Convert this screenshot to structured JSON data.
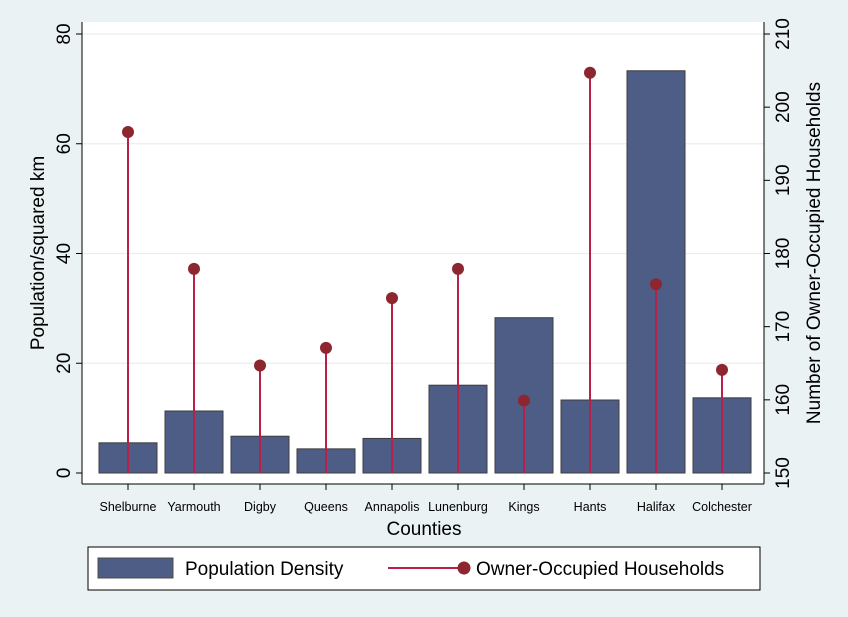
{
  "chart_data": {
    "type": "bar",
    "categories": [
      "Shelburne",
      "Yarmouth",
      "Digby",
      "Queens",
      "Annapolis",
      "Lunenburg",
      "Kings",
      "Hants",
      "Halifax",
      "Colchester"
    ],
    "series": [
      {
        "name": "Population Density",
        "type": "bar",
        "axis": "left",
        "values": [
          5.5,
          11.3,
          6.7,
          4.4,
          6.3,
          16.0,
          28.3,
          13.3,
          73.3,
          13.7
        ],
        "color": "#4e5d86"
      },
      {
        "name": "Owner-Occupied Households",
        "type": "lollipop",
        "axis": "right",
        "values": [
          196.6,
          177.9,
          164.7,
          167.1,
          173.9,
          177.9,
          159.9,
          204.7,
          175.8,
          164.1
        ],
        "color": "#b8204a",
        "marker_color": "#8e2630"
      }
    ],
    "xlabel": "Counties",
    "ylabel_left": "Population/squared km",
    "ylabel_right": "Number of Owner-Occupied Households",
    "ylim_left": [
      0,
      80
    ],
    "ylim_right": [
      150,
      210
    ],
    "yticks_left": [
      "0",
      "20",
      "40",
      "60",
      "80"
    ],
    "yticks_right": [
      "150",
      "160",
      "170",
      "180",
      "190",
      "200",
      "210"
    ],
    "legend": {
      "placement": "bottom",
      "items": [
        "Population Density",
        "Owner-Occupied Households"
      ]
    },
    "grid": true
  }
}
